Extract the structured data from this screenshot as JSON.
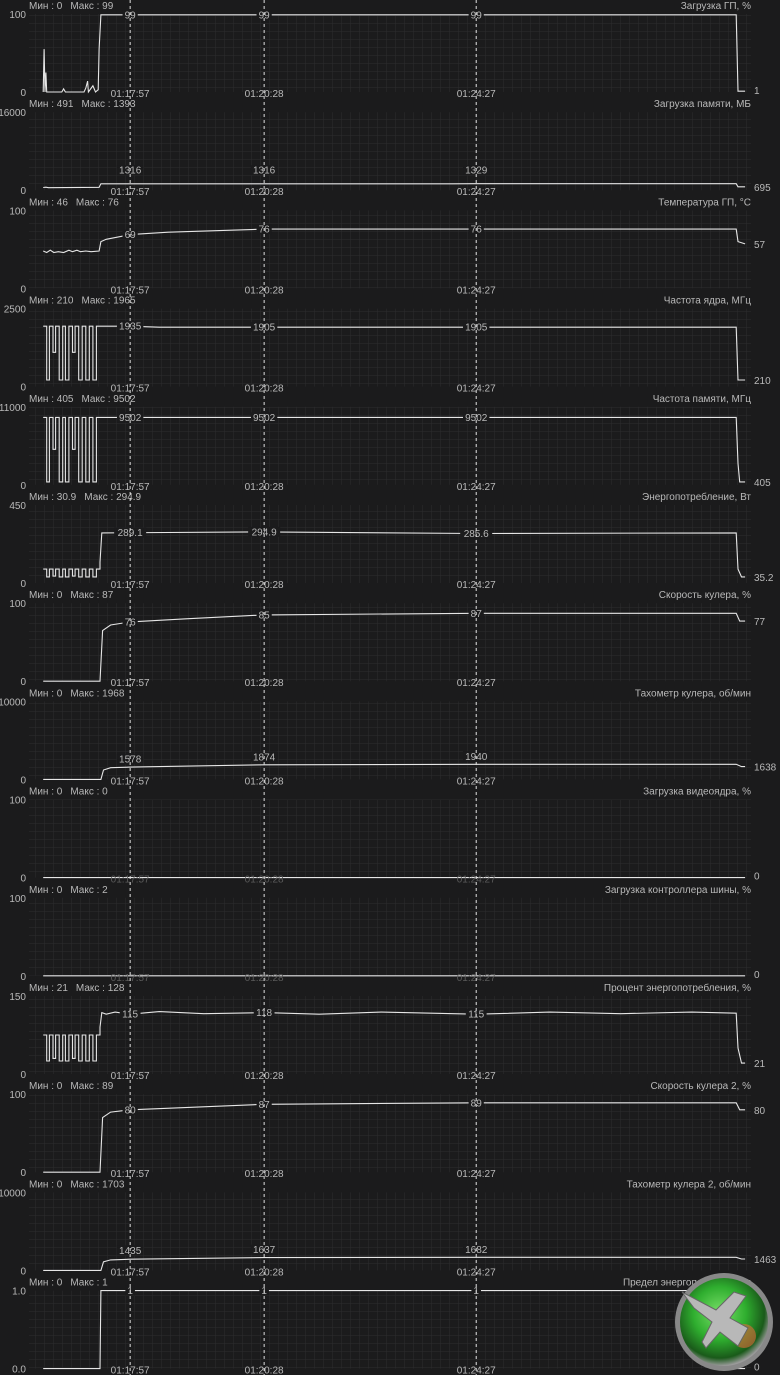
{
  "app": "MSI Afterburner hardware monitor",
  "colors": {
    "background": "#1b1b1c",
    "grid": "#2c2c2e",
    "line": "#e6e6e6",
    "text": "#b9b9b9",
    "logo_green": "#3cc43c"
  },
  "time_axis": {
    "start": "01:16:03",
    "end": "01:29:34",
    "markers": [
      "01:17:57",
      "01:20:28",
      "01:24:27"
    ]
  },
  "idle_times": [
    "01:16:19",
    "01:16:23",
    "01:16:26",
    "01:16:30",
    "01:16:33",
    "01:16:37",
    "01:16:41",
    "01:16:44",
    "01:16:48",
    "01:16:52",
    "01:16:55",
    "01:16:59",
    "01:17:03",
    "01:17:07",
    "01:17:11",
    "01:17:15",
    "01:17:19",
    "01:17:23"
  ],
  "panels": [
    {
      "title": "Загрузка ГП, %",
      "min_label": "Мин : 0",
      "max_label": "Макс : 99",
      "y_top": "100",
      "y_bottom": "0",
      "ymax": 100,
      "points": [
        [
          "01:16:19",
          0
        ],
        [
          "01:16:20",
          55
        ],
        [
          "01:16:21",
          0
        ],
        [
          "01:16:22",
          25
        ],
        [
          "01:16:23",
          0
        ],
        [
          "01:16:40",
          0
        ],
        [
          "01:16:42",
          4
        ],
        [
          "01:16:44",
          0
        ],
        [
          "01:17:05",
          0
        ],
        [
          "01:17:07",
          5
        ],
        [
          "01:17:09",
          14
        ],
        [
          "01:17:10",
          0
        ],
        [
          "01:17:15",
          8
        ],
        [
          "01:17:18",
          0
        ],
        [
          "01:17:21",
          3
        ],
        [
          "01:17:22",
          55
        ],
        [
          "01:17:24",
          99
        ],
        [
          "01:29:20",
          99
        ],
        [
          "01:29:21",
          50
        ],
        [
          "01:29:22",
          1
        ],
        [
          "01:29:30",
          1
        ]
      ],
      "marker_values": [
        "99",
        "99",
        "99"
      ],
      "last_value": "1"
    },
    {
      "title": "Загрузка памяти, МБ",
      "min_label": "Мин : 491",
      "max_label": "Макс : 1393",
      "y_top": "16000",
      "y_bottom": "0",
      "ymax": 16000,
      "points": [
        [
          "01:16:19",
          550
        ],
        [
          "01:16:22",
          620
        ],
        [
          "01:16:25",
          520
        ],
        [
          "01:17:22",
          600
        ],
        [
          "01:17:24",
          1316
        ],
        [
          "01:24:00",
          1316
        ],
        [
          "01:24:27",
          1329
        ],
        [
          "01:29:20",
          1329
        ],
        [
          "01:29:22",
          695
        ],
        [
          "01:29:30",
          695
        ]
      ],
      "marker_values": [
        "1316",
        "1316",
        "1329"
      ],
      "last_value": "695"
    },
    {
      "title": "Температура ГП, °С",
      "min_label": "Мин : 46",
      "max_label": "Макс : 76",
      "y_top": "100",
      "y_bottom": "0",
      "ymax": 100,
      "points": [
        [
          "01:16:19",
          48
        ],
        [
          "01:16:23",
          46
        ],
        [
          "01:16:27",
          49
        ],
        [
          "01:16:31",
          46
        ],
        [
          "01:16:36",
          47
        ],
        [
          "01:16:42",
          46
        ],
        [
          "01:16:48",
          49
        ],
        [
          "01:16:52",
          47
        ],
        [
          "01:16:57",
          49
        ],
        [
          "01:17:01",
          47
        ],
        [
          "01:17:07",
          48
        ],
        [
          "01:17:13",
          47
        ],
        [
          "01:17:22",
          48
        ],
        [
          "01:17:24",
          60
        ],
        [
          "01:17:30",
          63
        ],
        [
          "01:17:57",
          69
        ],
        [
          "01:18:40",
          72
        ],
        [
          "01:20:28",
          76
        ],
        [
          "01:29:20",
          76
        ],
        [
          "01:29:22",
          60
        ],
        [
          "01:29:30",
          57
        ]
      ],
      "marker_values": [
        "69",
        "76",
        "76"
      ],
      "last_value": "57"
    },
    {
      "title": "Частота ядра, МГц",
      "min_label": "Мин : 210",
      "max_label": "Макс : 1965",
      "y_top": "2500",
      "y_bottom": "0",
      "ymax": 2500,
      "idle_levels": [
        1935,
        210,
        1935,
        1100,
        1935,
        210,
        1935,
        210,
        1935,
        1100,
        1935,
        210,
        1935,
        210,
        1935,
        210,
        1935
      ],
      "points": [
        [
          "01:17:23",
          1935
        ],
        [
          "01:17:57",
          1935
        ],
        [
          "01:18:30",
          1905
        ],
        [
          "01:29:20",
          1905
        ],
        [
          "01:29:22",
          210
        ],
        [
          "01:29:30",
          210
        ]
      ],
      "marker_values": [
        "1935",
        "1905",
        "1905"
      ],
      "last_value": "210"
    },
    {
      "title": "Частота памяти, МГц",
      "min_label": "Мин : 405",
      "max_label": "Макс : 9502",
      "y_top": "11000",
      "y_bottom": "0",
      "ymax": 11000,
      "idle_levels": [
        9502,
        405,
        9502,
        5000,
        9502,
        405,
        9502,
        405,
        9502,
        5000,
        9502,
        405,
        9502,
        405,
        9502,
        405,
        9502
      ],
      "points": [
        [
          "01:17:23",
          9502
        ],
        [
          "01:29:20",
          9502
        ],
        [
          "01:29:22",
          3000
        ],
        [
          "01:29:24",
          405
        ],
        [
          "01:29:30",
          405
        ]
      ],
      "marker_values": [
        "9502",
        "9502",
        "9502"
      ],
      "last_value": "405"
    },
    {
      "title": "Энергопотребление, Вт",
      "min_label": "Мин : 30.9",
      "max_label": "Макс : 294.9",
      "y_top": "450",
      "y_bottom": "0",
      "ymax": 450,
      "idle_levels": [
        80,
        35,
        80,
        40,
        80,
        35,
        80,
        35,
        80,
        40,
        80,
        35,
        80,
        35,
        80,
        35,
        80
      ],
      "points": [
        [
          "01:17:23",
          120
        ],
        [
          "01:17:25",
          289.1
        ],
        [
          "01:20:28",
          294.9
        ],
        [
          "01:24:27",
          285.6
        ],
        [
          "01:29:20",
          289
        ],
        [
          "01:29:22",
          80
        ],
        [
          "01:29:26",
          35.2
        ],
        [
          "01:29:30",
          35.2
        ]
      ],
      "marker_values": [
        "289.1",
        "294.9",
        "285.6"
      ],
      "last_value": "35.2"
    },
    {
      "title": "Скорость кулера, %",
      "min_label": "Мин : 0",
      "max_label": "Макс : 87",
      "y_top": "100",
      "y_bottom": "0",
      "ymax": 100,
      "points": [
        [
          "01:16:19",
          0
        ],
        [
          "01:17:23",
          0
        ],
        [
          "01:17:26",
          65
        ],
        [
          "01:17:35",
          72
        ],
        [
          "01:17:57",
          76
        ],
        [
          "01:19:00",
          80
        ],
        [
          "01:20:28",
          85
        ],
        [
          "01:24:27",
          87
        ],
        [
          "01:29:20",
          87
        ],
        [
          "01:29:24",
          77
        ],
        [
          "01:29:30",
          77
        ]
      ],
      "marker_values": [
        "76",
        "85",
        "87"
      ],
      "last_value": "77"
    },
    {
      "title": "Тахометр кулера, об/мин",
      "min_label": "Мин : 0",
      "max_label": "Макс : 1968",
      "y_top": "10000",
      "y_bottom": "0",
      "ymax": 10000,
      "points": [
        [
          "01:16:19",
          0
        ],
        [
          "01:17:24",
          0
        ],
        [
          "01:17:27",
          1200
        ],
        [
          "01:17:35",
          1500
        ],
        [
          "01:17:57",
          1578
        ],
        [
          "01:20:28",
          1874
        ],
        [
          "01:24:27",
          1940
        ],
        [
          "01:29:20",
          1940
        ],
        [
          "01:29:26",
          1638
        ],
        [
          "01:29:30",
          1638
        ]
      ],
      "marker_values": [
        "1578",
        "1874",
        "1940"
      ],
      "last_value": "1638"
    },
    {
      "title": "Загрузка видеоядра, %",
      "min_label": "Мин : 0",
      "max_label": "Макс : 0",
      "y_top": "100",
      "y_bottom": "0",
      "ymax": 100,
      "points": [
        [
          "01:16:19",
          0
        ],
        [
          "01:29:30",
          0
        ]
      ],
      "marker_values": [],
      "last_value": "0"
    },
    {
      "title": "Загрузка контроллера шины, %",
      "min_label": "Мин : 0",
      "max_label": "Макс : 2",
      "y_top": "100",
      "y_bottom": "0",
      "ymax": 100,
      "points": [
        [
          "01:16:19",
          0
        ],
        [
          "01:29:30",
          0
        ]
      ],
      "marker_values": [],
      "last_value": "0"
    },
    {
      "title": "Процент энергопотребления, %",
      "min_label": "Мин : 21",
      "max_label": "Макс : 128",
      "y_top": "150",
      "y_bottom": "0",
      "ymax": 150,
      "idle_levels": [
        75,
        25,
        75,
        30,
        75,
        25,
        75,
        25,
        75,
        30,
        75,
        25,
        75,
        25,
        75,
        25,
        75
      ],
      "points": [
        [
          "01:17:23",
          90
        ],
        [
          "01:17:25",
          118
        ],
        [
          "01:17:30",
          115
        ],
        [
          "01:17:40",
          119
        ],
        [
          "01:17:57",
          115
        ],
        [
          "01:18:30",
          120
        ],
        [
          "01:19:20",
          116
        ],
        [
          "01:20:28",
          118
        ],
        [
          "01:21:30",
          115
        ],
        [
          "01:22:40",
          119
        ],
        [
          "01:24:27",
          115
        ],
        [
          "01:25:50",
          119
        ],
        [
          "01:27:10",
          116
        ],
        [
          "01:28:30",
          119
        ],
        [
          "01:29:20",
          117
        ],
        [
          "01:29:22",
          50
        ],
        [
          "01:29:26",
          21
        ],
        [
          "01:29:30",
          21
        ]
      ],
      "marker_values": [
        "115",
        "118",
        "115"
      ],
      "last_value": "21"
    },
    {
      "title": "Скорость кулера 2, %",
      "min_label": "Мин : 0",
      "max_label": "Макс : 89",
      "y_top": "100",
      "y_bottom": "0",
      "ymax": 100,
      "points": [
        [
          "01:16:19",
          0
        ],
        [
          "01:17:23",
          0
        ],
        [
          "01:17:26",
          70
        ],
        [
          "01:17:35",
          77
        ],
        [
          "01:17:57",
          80
        ],
        [
          "01:20:28",
          87
        ],
        [
          "01:24:27",
          89
        ],
        [
          "01:29:20",
          89
        ],
        [
          "01:29:24",
          80
        ],
        [
          "01:29:30",
          80
        ]
      ],
      "marker_values": [
        "80",
        "87",
        "89"
      ],
      "last_value": "80"
    },
    {
      "title": "Тахометр кулера 2, об/мин",
      "min_label": "Мин : 0",
      "max_label": "Макс : 1703",
      "y_top": "10000",
      "y_bottom": "0",
      "ymax": 10000,
      "points": [
        [
          "01:16:19",
          0
        ],
        [
          "01:17:24",
          0
        ],
        [
          "01:17:27",
          1100
        ],
        [
          "01:17:35",
          1350
        ],
        [
          "01:17:57",
          1435
        ],
        [
          "01:20:28",
          1637
        ],
        [
          "01:24:27",
          1682
        ],
        [
          "01:29:20",
          1682
        ],
        [
          "01:29:26",
          1463
        ],
        [
          "01:29:30",
          1463
        ]
      ],
      "marker_values": [
        "1435",
        "1637",
        "1682"
      ],
      "last_value": "1463"
    },
    {
      "title": "Предел энергопотребления",
      "min_label": "Мин : 0",
      "max_label": "Макс : 1",
      "y_top": "1.0",
      "y_bottom": "0.0",
      "ymax": 1,
      "points": [
        [
          "01:16:19",
          0
        ],
        [
          "01:17:23",
          0
        ],
        [
          "01:17:24",
          1
        ],
        [
          "01:29:20",
          1
        ],
        [
          "01:29:22",
          0
        ],
        [
          "01:29:30",
          0
        ]
      ],
      "marker_values": [
        "1",
        "1",
        "1"
      ],
      "last_value": "0"
    }
  ]
}
